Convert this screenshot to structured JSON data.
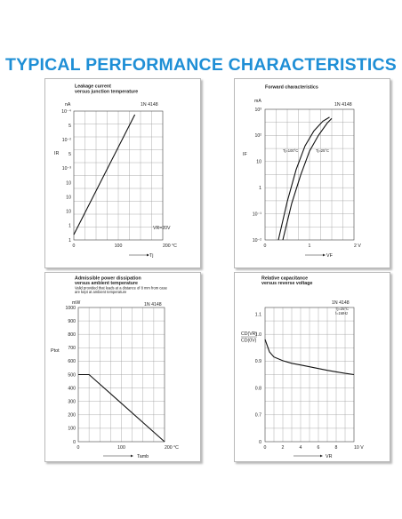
{
  "heading": "TYPICAL PERFORMANCE CHARACTERISTICS",
  "chart_data": [
    {
      "type": "line",
      "title": "Leakage current",
      "subtitle": "versus junction temperature",
      "part": "1N 4148",
      "condition": "VR=20V",
      "ylabel": "IR",
      "yunit": "nA",
      "xlabel": "Tj",
      "x_ticks": [
        "0",
        "100",
        "200 °C"
      ],
      "y_ticks": [
        "1",
        "1",
        "10",
        "10",
        "10",
        "10⁻³",
        "5",
        "10⁻²",
        "5",
        "10⁻⁴"
      ],
      "grid": true,
      "series": [
        {
          "x": [
            0,
            140
          ],
          "y": [
            1.0,
            10000.0
          ]
        }
      ]
    },
    {
      "type": "line",
      "title": "Forward characteristics",
      "part": "1N 4148",
      "ylabel": "IF",
      "yunit": "mA",
      "xlabel": "VF",
      "x_ticks": [
        "0",
        "1",
        "2 V"
      ],
      "y_ticks": [
        "10⁻²",
        "10⁻¹",
        "1",
        "10",
        "10²",
        "10³"
      ],
      "grid": true,
      "series": [
        {
          "name": "Tj=100°C",
          "x": [
            0.3,
            0.5,
            0.7,
            0.9,
            1.1,
            1.3,
            1.45
          ],
          "y": [
            0.01,
            0.3,
            5,
            40,
            150,
            350,
            500
          ]
        },
        {
          "name": "Tj=25°C",
          "x": [
            0.4,
            0.6,
            0.8,
            1.0,
            1.2,
            1.4,
            1.5
          ],
          "y": [
            0.01,
            0.25,
            3,
            25,
            100,
            300,
            450
          ]
        }
      ]
    },
    {
      "type": "line",
      "title": "Admissible power dissipation",
      "subtitle": "versus ambient temperature",
      "note": "Valid provided that leads at a distance of 8 mm from case are kept at ambient temperature",
      "part": "1N 4148",
      "ylabel": "Ptot",
      "yunit": "mW",
      "xlabel": "Tamb",
      "x_ticks": [
        "0",
        "100",
        "200 °C"
      ],
      "y_ticks": [
        "0",
        "100",
        "200",
        "300",
        "400",
        "500",
        "600",
        "700",
        "800",
        "900",
        "1000"
      ],
      "xlim": [
        0,
        200
      ],
      "ylim": [
        0,
        1000
      ],
      "grid": true,
      "series": [
        {
          "x": [
            0,
            25,
            200
          ],
          "y": [
            500,
            500,
            0
          ]
        }
      ]
    },
    {
      "type": "line",
      "title": "Relative capacitance",
      "subtitle": "versus reverse voltage",
      "part": "1N 4148",
      "condition_1": "Tj=25°C",
      "condition_2": "f=1MHz",
      "ylabel_1": "CD(VR)",
      "ylabel_2": "CD(0V)",
      "xlabel": "VR",
      "x_ticks": [
        "0",
        "2",
        "4",
        "6",
        "8",
        "10 V"
      ],
      "y_ticks": [
        "0",
        "0.7",
        "0.8",
        "0.9",
        "1.0",
        "1.1"
      ],
      "xlim": [
        0,
        10
      ],
      "grid": true,
      "series": [
        {
          "x": [
            0,
            0.5,
            1,
            2,
            3,
            4,
            5,
            6,
            7,
            8,
            9,
            10
          ],
          "y": [
            1.0,
            0.95,
            0.93,
            0.915,
            0.905,
            0.898,
            0.891,
            0.884,
            0.877,
            0.871,
            0.865,
            0.86
          ]
        }
      ]
    }
  ]
}
